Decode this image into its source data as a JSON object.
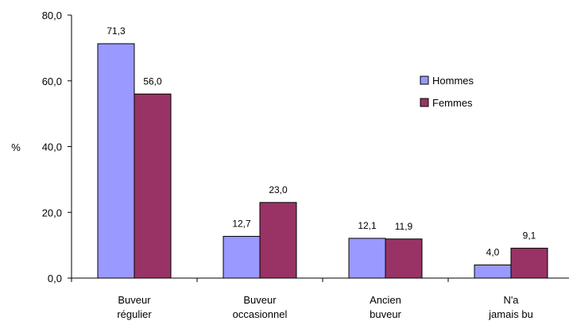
{
  "chart_data": {
    "type": "bar",
    "ylabel": "%",
    "ylim": [
      0,
      80
    ],
    "yticks": [
      "0,0",
      "20,0",
      "40,0",
      "60,0",
      "80,0"
    ],
    "categories": [
      [
        "Buveur",
        "régulier"
      ],
      [
        "Buveur",
        "occasionnel"
      ],
      [
        "Ancien",
        "buveur"
      ],
      [
        "N'a",
        "jamais bu"
      ]
    ],
    "series": [
      {
        "name": "Hommes",
        "color": "#9999ff",
        "values": [
          71.3,
          12.7,
          12.1,
          4.0
        ],
        "labels": [
          "71,3",
          "12,7",
          "12,1",
          "4,0"
        ]
      },
      {
        "name": "Femmes",
        "color": "#993366",
        "values": [
          56.0,
          23.0,
          11.9,
          9.1
        ],
        "labels": [
          "56,0",
          "23,0",
          "11,9",
          "9,1"
        ]
      }
    ],
    "legend_position": "right",
    "grid": false
  }
}
